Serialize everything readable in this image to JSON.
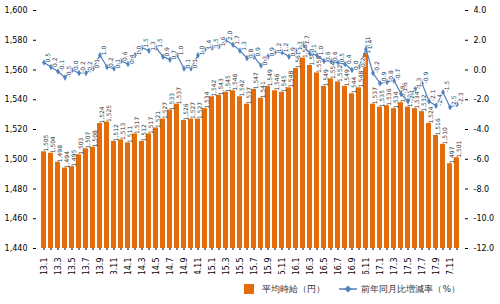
{
  "chart_data": {
    "type": "bar",
    "categories": [
      "13.1",
      null,
      "13.3",
      null,
      "13.5",
      null,
      "13.7",
      null,
      "13.9",
      null,
      "13.11",
      null,
      "14.1",
      null,
      "14.3",
      null,
      "14.5",
      null,
      "14.7",
      null,
      "14.9",
      null,
      "14.11",
      null,
      "15.1",
      null,
      "15.3",
      null,
      "15.5",
      null,
      "15.7",
      null,
      "15.9",
      null,
      "15.11",
      null,
      "16.1",
      null,
      "16.3",
      null,
      "16.5",
      null,
      "16.7",
      null,
      "16.9",
      null,
      "16.11",
      null,
      "17.1",
      null,
      "17.3",
      null,
      "17.5",
      null,
      "17.7",
      null,
      "17.9",
      null,
      "17.11",
      null
    ],
    "series": [
      {
        "name": "平均時給（円）",
        "type": "bar",
        "color": "#e46c0a",
        "values": [
          1505,
          1504,
          1498,
          1494,
          1495,
          1503,
          1507,
          1508,
          1524,
          1525,
          1512,
          1513,
          1511,
          1517,
          1512,
          1517,
          1521,
          1527,
          1533,
          1537,
          1526,
          1527,
          1527,
          1534,
          1542,
          1543,
          1545,
          1546,
          1542,
          1537,
          1547,
          1541,
          1549,
          1546,
          1545,
          1548,
          1561,
          1568,
          1563,
          1558,
          1549,
          1554,
          1552,
          1549,
          1544,
          1548,
          1571,
          1537,
          1535,
          1536,
          1534,
          1538,
          1535,
          1534,
          1532,
          1524,
          1516,
          1510,
          1497,
          1501
        ],
        "value_labels": [
          "1,505",
          "1,504",
          "1,498",
          "1,494",
          "1,495",
          "1,503",
          "1,507",
          "1,508",
          "1,524",
          "1,525",
          "1,512",
          "1,513",
          "1,511",
          "1,517",
          "1,512",
          "1,517",
          "1,521",
          "1,527",
          "1,533",
          "1,537",
          "1,526",
          "1,527",
          "1,527",
          "1,534",
          "1,542",
          "1,543",
          "1,545",
          "1,546",
          "1,542",
          "1,537",
          "1,547",
          "1,541",
          "1,549",
          "1,546",
          "1,545",
          "1,548",
          "1,561",
          "1,568",
          "1,563",
          "1,558",
          "1,549",
          "1,554",
          "1,552",
          "1,549",
          "1,544",
          "1,548",
          "1,571",
          "1,537",
          "1,535",
          "1,536",
          "1,534",
          "1,538",
          "1,535",
          "1,534",
          "1,532",
          "1,524",
          "1,516",
          "1,510",
          "1,497",
          "1,501"
        ]
      },
      {
        "name": "前年同月比増減率（%）",
        "type": "line",
        "axis": "y2",
        "color": "#4f81bd",
        "marker": "diamond",
        "values": [
          0.5,
          0.2,
          -0.1,
          -0.5,
          0.0,
          -0.2,
          -0.2,
          0.1,
          1.0,
          0.2,
          0.1,
          0.6,
          0.4,
          1.0,
          1.5,
          1.3,
          1.5,
          0.9,
          0.7,
          1.0,
          0.1,
          0.1,
          1.0,
          1.4,
          1.5,
          1.6,
          2.0,
          1.7,
          1.3,
          0.8,
          0.9,
          0.3,
          0.9,
          1.2,
          1.2,
          0.9,
          1.3,
          1.7,
          1.1,
          1.0,
          0.6,
          0.6,
          0.5,
          0.4,
          0.0,
          0.2,
          1.4,
          -0.2,
          -0.9,
          -0.8,
          -0.7,
          -1.6,
          -2.1,
          -1.3,
          -0.9,
          -2.1,
          -2.4,
          -1.5,
          -2.5,
          -2.3
        ],
        "value_labels": [
          "0.5",
          "0.2",
          "-0.1",
          "-0.5",
          "0.0",
          "-0.2",
          "-0.2",
          "0.1",
          "1.0",
          "0.2",
          "0.1",
          "0.6",
          "0.4",
          "1.0",
          "1.5",
          "1.3",
          "1.5",
          "0.9",
          "0.7",
          "1.0",
          "0.1",
          "0.1",
          "1.0",
          "1.4",
          "1.5",
          "1.6",
          "2.0",
          "1.7",
          "1.3",
          "0.8",
          "0.9",
          "0.3",
          "0.9",
          "1.2",
          "1.2",
          "0.9",
          "1.3",
          "1.7",
          "1.1",
          "1.0",
          "0.6",
          "0.6",
          "0.5",
          "0.4",
          "0.0",
          "0.2",
          "1.4",
          "-0.2",
          "-0.9",
          "-0.8",
          "-0.7",
          "-1.6",
          "-2.1",
          "-1.3",
          "-0.9",
          "-2.1",
          "-2.4",
          "-1.5",
          "-2.5",
          "-2.3"
        ]
      }
    ],
    "ylim": [
      1440,
      1600
    ],
    "yticks": [
      {
        "value": 1440,
        "label": "1,440"
      },
      {
        "value": 1460,
        "label": "1,460"
      },
      {
        "value": 1480,
        "label": "1,480"
      },
      {
        "value": 1500,
        "label": "1,500"
      },
      {
        "value": 1520,
        "label": "1,520"
      },
      {
        "value": 1540,
        "label": "1,540"
      },
      {
        "value": 1560,
        "label": "1,560"
      },
      {
        "value": 1580,
        "label": "1,580"
      },
      {
        "value": 1600,
        "label": "1,600"
      }
    ],
    "y2lim": [
      -12,
      4
    ],
    "y2ticks": [
      {
        "value": -12,
        "label": "-12.0"
      },
      {
        "value": -10,
        "label": "-10.0"
      },
      {
        "value": -8,
        "label": "-8.0"
      },
      {
        "value": -6,
        "label": "-6.0"
      },
      {
        "value": -4,
        "label": "-4.0"
      },
      {
        "value": -2,
        "label": "-2.0"
      },
      {
        "value": 0,
        "label": "0.0"
      },
      {
        "value": 2,
        "label": "2.0"
      },
      {
        "value": 4,
        "label": "4.0"
      }
    ],
    "data_labels": true,
    "grid": false,
    "legend": "bottom-right"
  }
}
